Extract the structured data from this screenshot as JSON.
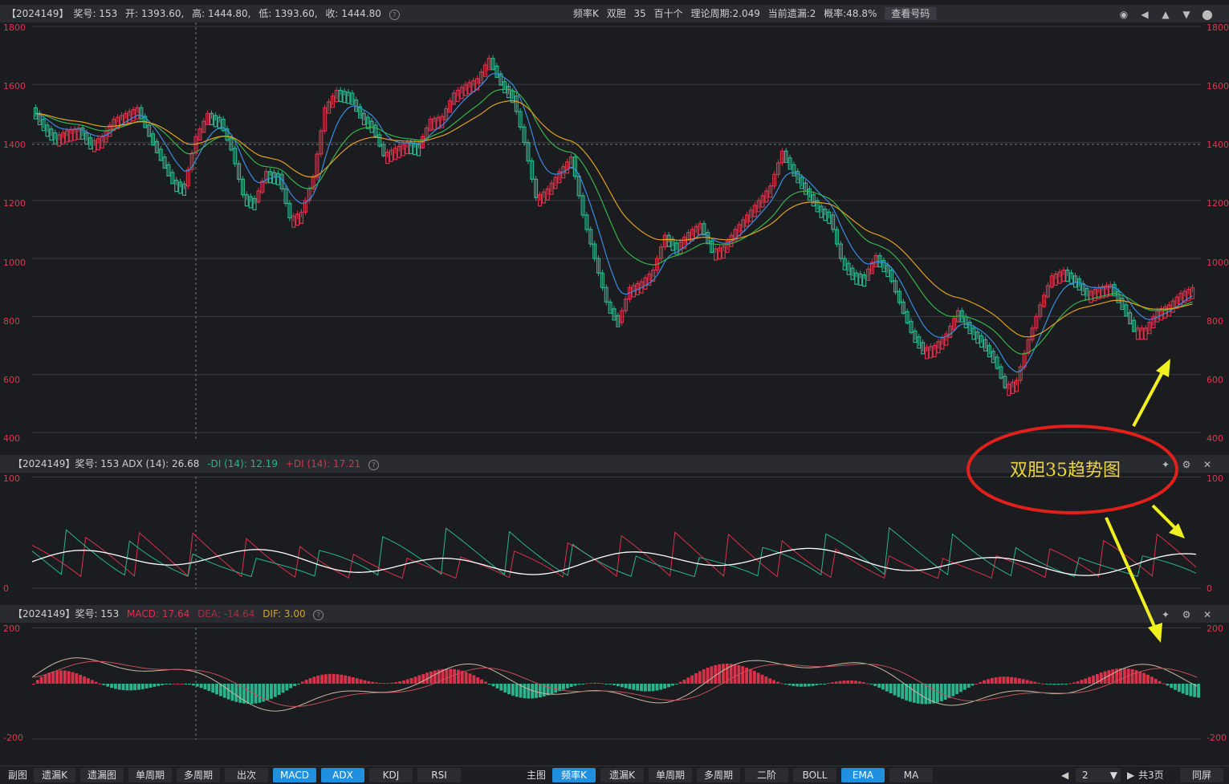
{
  "main_header": {
    "id": "【2024149】",
    "issue": "奖号: 153",
    "open": "开: 1393.60,",
    "high": "高: 1444.80,",
    "low": "低: 1393.60,",
    "close": "收: 1444.80",
    "right_info": [
      "频率K",
      "双胆",
      "35",
      "百十个",
      "理论周期:2.049",
      "当前遗漏:2",
      "概率:48.8%"
    ],
    "view_button": "查看号码"
  },
  "main_axis": [
    "1800",
    "1600",
    "1400",
    "1200",
    "1000",
    "800",
    "600",
    "400"
  ],
  "adx_header": {
    "text": "【2024149】奖号: 153 ADX (14): 26.68",
    "minus_di": "-DI (14): 12.19",
    "plus_di": "+DI (14): 17.21"
  },
  "adx_axis": [
    "100",
    "0"
  ],
  "macd_header": {
    "text": "【2024149】奖号: 153",
    "macd": "MACD: 17.64",
    "dea": "DEA: -14.64",
    "dif": "DIF: 3.00"
  },
  "macd_axis": [
    "200",
    "-200"
  ],
  "annotation": "双胆35趋势图",
  "colors": {
    "up": "#d8314a",
    "down": "#2bb38d",
    "accent": "#1f8fe0",
    "ema_fast": "#3a8de0",
    "ema_mid": "#36b34a",
    "ema_slow": "#e0a020",
    "annot": "#e8d63a",
    "circle": "#e0201a"
  },
  "toolbar": {
    "sub_label": "副图",
    "sub_buttons": [
      "遗漏K",
      "遗漏图",
      "单周期",
      "多周期",
      "出次",
      "MACD",
      "ADX",
      "KDJ",
      "RSI"
    ],
    "sub_active": [
      "MACD",
      "ADX"
    ],
    "main_label": "主图",
    "main_buttons": [
      "频率K",
      "遗漏K",
      "单周期",
      "多周期",
      "二阶",
      "BOLL",
      "EMA",
      "MA"
    ],
    "main_active": [
      "频率K",
      "EMA"
    ],
    "page_value": "2",
    "page_total": "共3页",
    "sync_screen": "同屏"
  },
  "chart_data": {
    "type": "candlestick",
    "ylim": [
      400,
      1800
    ],
    "close_approx": [
      1520,
      1460,
      1420,
      1440,
      1450,
      1400,
      1420,
      1480,
      1500,
      1520,
      1430,
      1350,
      1270,
      1250,
      1420,
      1500,
      1480,
      1380,
      1220,
      1200,
      1300,
      1290,
      1140,
      1160,
      1280,
      1520,
      1580,
      1570,
      1500,
      1460,
      1360,
      1380,
      1400,
      1390,
      1480,
      1490,
      1570,
      1600,
      1620,
      1690,
      1610,
      1560,
      1400,
      1210,
      1240,
      1300,
      1350,
      1150,
      1000,
      850,
      780,
      900,
      920,
      960,
      1080,
      1040,
      1090,
      1120,
      1030,
      1040,
      1100,
      1150,
      1200,
      1250,
      1370,
      1300,
      1240,
      1180,
      1150,
      1000,
      950,
      940,
      1010,
      960,
      850,
      750,
      690,
      700,
      740,
      820,
      760,
      720,
      660,
      560,
      580,
      720,
      840,
      940,
      960,
      930,
      880,
      900,
      910,
      840,
      760,
      760,
      820,
      840,
      880,
      900
    ]
  }
}
